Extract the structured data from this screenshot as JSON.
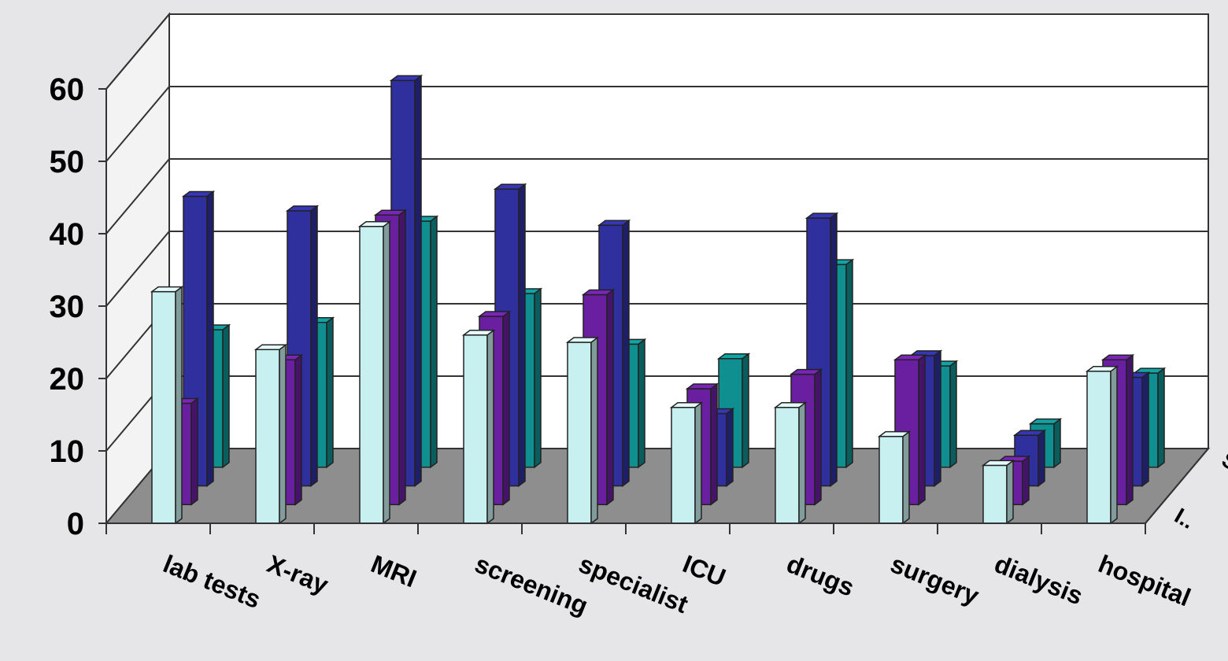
{
  "chart_data": {
    "type": "bar",
    "subtype": "3d-clustered-column",
    "categories": [
      "lab tests",
      "X-ray",
      "MRI",
      "screening",
      "specialist",
      "ICU",
      "drugs",
      "surgery",
      "dialysis",
      "hospital"
    ],
    "series": [
      {
        "name": "I..",
        "color": "#c8f0f0",
        "values": [
          32,
          24,
          41,
          26,
          25,
          16,
          16,
          12,
          8,
          21
        ]
      },
      {
        "name": "",
        "color": "#6a1fa0",
        "values": [
          14,
          20,
          40,
          26,
          29,
          16,
          18,
          20,
          6,
          20
        ]
      },
      {
        "name": "",
        "color": "#2f2f9e",
        "values": [
          40,
          38,
          56,
          41,
          36,
          10,
          37,
          18,
          7,
          15
        ]
      },
      {
        "name": "S..",
        "color": "#0f8f8f",
        "values": [
          19,
          20,
          34,
          24,
          17,
          15,
          28,
          14,
          6,
          13
        ]
      }
    ],
    "yticks": [
      "0",
      "10",
      "20",
      "30",
      "40",
      "50",
      "60"
    ],
    "ylim": [
      0,
      60
    ],
    "grid": true,
    "colors": {
      "floor": "#8e8e8e",
      "wall": "#ffffff",
      "background": "#e6e6e8"
    }
  }
}
